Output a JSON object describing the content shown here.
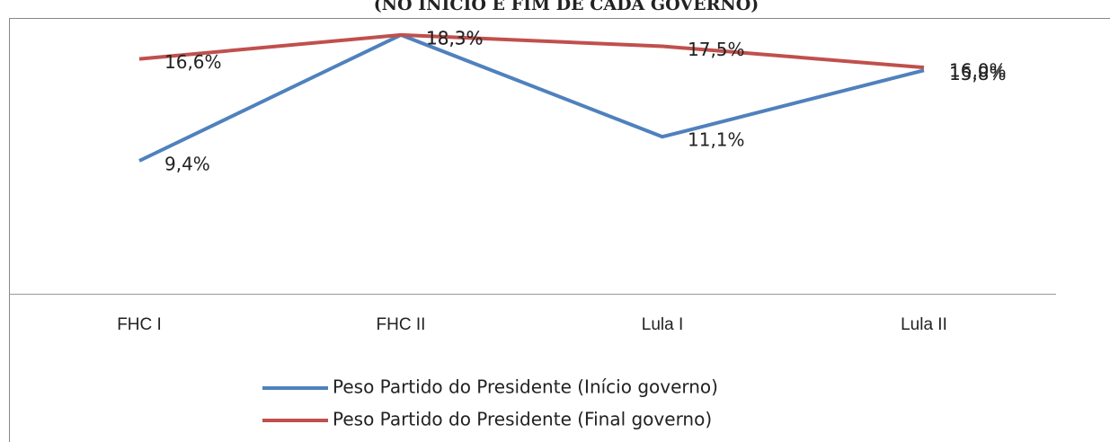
{
  "chart_data": {
    "type": "line",
    "title": "(NO INÍCIO E FIM DE CADA GOVERNO)",
    "categories": [
      "FHC I",
      "FHC II",
      "Lula I",
      "Lula II"
    ],
    "series": [
      {
        "name": "Peso Partido do Presidente (Início governo)",
        "color": "#4f81bd",
        "values": [
          9.4,
          18.3,
          11.1,
          15.8
        ],
        "value_labels": [
          "9,4%",
          "18,3%",
          "11,1%",
          "15,8%"
        ]
      },
      {
        "name": "Peso Partido do Presidente (Final governo)",
        "color": "#c0504d",
        "values": [
          16.6,
          18.3,
          17.5,
          16.0
        ],
        "value_labels": [
          "16,6%",
          "18,3%",
          "17,5%",
          "16,0%"
        ]
      }
    ],
    "ylim": [
      0,
      19.5
    ]
  }
}
